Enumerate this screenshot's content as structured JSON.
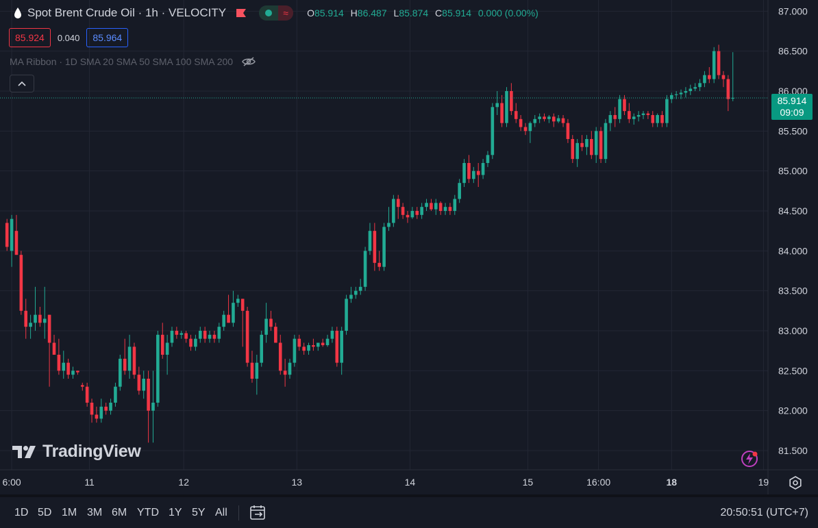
{
  "header": {
    "title": "Spot Brent Crude Oil · 1h · VELOCITY",
    "ohlc": [
      {
        "key": "O",
        "value": "85.914"
      },
      {
        "key": "H",
        "value": "86.487"
      },
      {
        "key": "L",
        "value": "85.874"
      },
      {
        "key": "C",
        "value": "85.914"
      }
    ],
    "change": "0.000 (0.00%)",
    "bid": "85.924",
    "spread": "0.040",
    "ask": "85.964",
    "indicator": "MA Ribbon · 1D SMA 20 SMA 50 SMA 100 SMA 200"
  },
  "logo_text": "TradingView",
  "last_price_label": {
    "price": "85.914",
    "countdown": "09:09"
  },
  "toolbar": {
    "timeframes": [
      "1D",
      "5D",
      "1M",
      "3M",
      "6M",
      "YTD",
      "1Y",
      "5Y",
      "All"
    ],
    "clock": "20:50:51 (UTC+7)"
  },
  "colors": {
    "background": "#161a25",
    "up": "#22ab94",
    "down": "#f23645",
    "grid": "#232734",
    "text": "#d1d4dc",
    "last_price_bg": "#089981"
  },
  "icons": [
    "oil-drop-icon",
    "flag-icon",
    "status-dot-icon",
    "wave-icon",
    "eye-hidden-icon",
    "chevron-up-icon",
    "tradingview-logo-icon",
    "lightning-icon",
    "gear-icon",
    "calendar-range-icon"
  ],
  "chart_data": {
    "type": "candlestick",
    "y_ticks": [
      "87.000",
      "86.500",
      "86.000",
      "85.500",
      "85.000",
      "84.500",
      "84.000",
      "83.500",
      "83.000",
      "82.500",
      "82.000",
      "81.500"
    ],
    "ylim": [
      81.26,
      87.14
    ],
    "x_ticks": [
      {
        "label": "6:00",
        "pos": 1
      },
      {
        "label": "11",
        "pos": 17.5
      },
      {
        "label": "12",
        "pos": 37.5
      },
      {
        "label": "13",
        "pos": 61.5
      },
      {
        "label": "14",
        "pos": 85.5
      },
      {
        "label": "15",
        "pos": 110.5
      },
      {
        "label": "16:00",
        "pos": 125.5
      },
      {
        "label": "18",
        "pos": 141
      },
      {
        "label": "19",
        "pos": 160.5
      }
    ],
    "last_price": 85.914,
    "candles": [
      [
        84.35,
        84.4,
        84.0,
        84.05
      ],
      [
        84.0,
        84.45,
        83.8,
        84.4
      ],
      [
        84.25,
        84.45,
        83.95,
        83.95
      ],
      [
        83.95,
        84.0,
        83.2,
        83.25
      ],
      [
        83.25,
        83.4,
        82.9,
        83.05
      ],
      [
        83.05,
        83.2,
        82.9,
        83.1
      ],
      [
        83.1,
        83.55,
        83.0,
        83.2
      ],
      [
        83.2,
        83.3,
        83.05,
        83.1
      ],
      [
        83.1,
        83.55,
        82.9,
        83.15
      ],
      [
        83.2,
        83.2,
        82.3,
        82.85
      ],
      [
        82.85,
        82.95,
        82.7,
        82.7
      ],
      [
        82.7,
        82.9,
        82.45,
        82.5
      ],
      [
        82.5,
        82.75,
        82.4,
        82.6
      ],
      [
        82.6,
        82.65,
        82.4,
        82.45
      ],
      [
        82.45,
        82.55,
        82.4,
        82.5
      ],
      [
        82.5,
        82.5,
        82.45,
        82.48
      ],
      [
        82.32,
        82.35,
        82.25,
        82.3
      ],
      [
        82.3,
        82.35,
        82.05,
        82.1
      ],
      [
        82.1,
        82.15,
        81.85,
        81.95
      ],
      [
        81.95,
        82.05,
        81.85,
        81.9
      ],
      [
        81.9,
        82.15,
        81.85,
        82.05
      ],
      [
        82.05,
        82.1,
        81.95,
        82.0
      ],
      [
        82.0,
        82.15,
        81.95,
        82.1
      ],
      [
        82.1,
        82.35,
        82.05,
        82.3
      ],
      [
        82.3,
        82.7,
        82.25,
        82.65
      ],
      [
        82.65,
        82.9,
        82.45,
        82.5
      ],
      [
        82.5,
        82.95,
        82.4,
        82.8
      ],
      [
        82.8,
        82.85,
        82.4,
        82.45
      ],
      [
        82.45,
        82.55,
        82.2,
        82.25
      ],
      [
        82.25,
        82.5,
        82.15,
        82.4
      ],
      [
        82.4,
        82.5,
        81.6,
        82.0
      ],
      [
        82.0,
        82.5,
        81.6,
        82.1
      ],
      [
        82.1,
        83.0,
        82.05,
        82.95
      ],
      [
        82.95,
        83.1,
        82.65,
        82.7
      ],
      [
        82.7,
        82.95,
        82.45,
        82.85
      ],
      [
        82.85,
        83.05,
        82.8,
        83.0
      ],
      [
        83.0,
        83.05,
        82.9,
        82.95
      ],
      [
        82.95,
        83.0,
        82.9,
        82.97
      ],
      [
        82.97,
        83.0,
        82.85,
        82.9
      ],
      [
        82.9,
        82.95,
        82.75,
        82.8
      ],
      [
        82.8,
        82.95,
        82.75,
        82.9
      ],
      [
        82.9,
        83.05,
        82.85,
        83.0
      ],
      [
        83.0,
        83.05,
        82.85,
        82.9
      ],
      [
        82.9,
        83.0,
        82.85,
        82.95
      ],
      [
        82.95,
        83.0,
        82.85,
        82.9
      ],
      [
        82.9,
        83.1,
        82.85,
        83.05
      ],
      [
        83.05,
        83.25,
        83.0,
        83.2
      ],
      [
        83.2,
        83.45,
        83.1,
        83.1
      ],
      [
        83.1,
        83.5,
        83.05,
        83.35
      ],
      [
        83.35,
        83.45,
        83.3,
        83.4
      ],
      [
        83.4,
        83.4,
        82.8,
        83.25
      ],
      [
        83.25,
        83.3,
        82.55,
        82.6
      ],
      [
        82.6,
        82.75,
        82.35,
        82.4
      ],
      [
        82.4,
        82.7,
        82.2,
        82.6
      ],
      [
        82.6,
        83.0,
        82.55,
        82.95
      ],
      [
        82.95,
        83.35,
        82.85,
        83.15
      ],
      [
        83.15,
        83.25,
        83.0,
        83.05
      ],
      [
        83.05,
        83.1,
        82.85,
        82.85
      ],
      [
        82.85,
        82.95,
        82.45,
        82.5
      ],
      [
        82.5,
        82.65,
        82.3,
        82.45
      ],
      [
        82.45,
        82.65,
        82.4,
        82.6
      ],
      [
        82.6,
        82.95,
        82.55,
        82.9
      ],
      [
        82.9,
        82.95,
        82.75,
        82.8
      ],
      [
        82.8,
        82.85,
        82.7,
        82.75
      ],
      [
        82.75,
        82.85,
        82.7,
        82.82
      ],
      [
        82.82,
        82.9,
        82.75,
        82.8
      ],
      [
        82.8,
        82.85,
        82.75,
        82.85
      ],
      [
        82.85,
        82.9,
        82.8,
        82.82
      ],
      [
        82.82,
        82.95,
        82.8,
        82.9
      ],
      [
        82.9,
        83.05,
        82.85,
        83.0
      ],
      [
        83.0,
        83.05,
        82.55,
        82.6
      ],
      [
        82.6,
        83.05,
        82.45,
        83.0
      ],
      [
        83.0,
        83.45,
        82.95,
        83.4
      ],
      [
        83.4,
        83.55,
        83.35,
        83.45
      ],
      [
        83.45,
        83.55,
        83.4,
        83.5
      ],
      [
        83.5,
        83.65,
        83.45,
        83.55
      ],
      [
        83.55,
        84.05,
        83.5,
        84.0
      ],
      [
        84.0,
        84.35,
        83.95,
        84.25
      ],
      [
        84.25,
        84.35,
        83.75,
        83.85
      ],
      [
        83.85,
        84.0,
        83.75,
        83.8
      ],
      [
        83.8,
        84.35,
        83.75,
        84.3
      ],
      [
        84.3,
        84.55,
        84.25,
        84.35
      ],
      [
        84.35,
        84.7,
        84.3,
        84.65
      ],
      [
        84.65,
        84.7,
        84.4,
        84.55
      ],
      [
        84.55,
        84.6,
        84.4,
        84.45
      ],
      [
        84.45,
        84.5,
        84.35,
        84.42
      ],
      [
        84.42,
        84.55,
        84.4,
        84.5
      ],
      [
        84.5,
        84.55,
        84.4,
        84.45
      ],
      [
        84.45,
        84.6,
        84.4,
        84.55
      ],
      [
        84.55,
        84.65,
        84.5,
        84.6
      ],
      [
        84.6,
        84.65,
        84.5,
        84.52
      ],
      [
        84.52,
        84.65,
        84.45,
        84.6
      ],
      [
        84.6,
        84.62,
        84.45,
        84.5
      ],
      [
        84.5,
        84.6,
        84.45,
        84.55
      ],
      [
        84.55,
        84.6,
        84.45,
        84.5
      ],
      [
        84.5,
        84.7,
        84.45,
        84.65
      ],
      [
        84.65,
        84.9,
        84.6,
        84.85
      ],
      [
        84.85,
        85.15,
        84.8,
        85.1
      ],
      [
        85.1,
        85.2,
        84.85,
        84.9
      ],
      [
        84.9,
        85.05,
        84.85,
        85.0
      ],
      [
        85.0,
        85.1,
        84.8,
        84.95
      ],
      [
        84.95,
        85.15,
        84.9,
        85.1
      ],
      [
        85.1,
        85.25,
        85.05,
        85.2
      ],
      [
        85.2,
        85.85,
        85.15,
        85.8
      ],
      [
        85.8,
        86.0,
        85.7,
        85.85
      ],
      [
        85.85,
        85.95,
        85.55,
        85.6
      ],
      [
        85.6,
        86.05,
        85.55,
        86.0
      ],
      [
        86.0,
        86.1,
        85.7,
        85.75
      ],
      [
        85.75,
        85.85,
        85.6,
        85.65
      ],
      [
        85.65,
        85.7,
        85.5,
        85.55
      ],
      [
        85.55,
        85.6,
        85.45,
        85.5
      ],
      [
        85.5,
        85.62,
        85.35,
        85.6
      ],
      [
        85.6,
        85.7,
        85.55,
        85.65
      ],
      [
        85.65,
        85.72,
        85.6,
        85.68
      ],
      [
        85.68,
        85.72,
        85.62,
        85.65
      ],
      [
        85.65,
        85.7,
        85.6,
        85.68
      ],
      [
        85.68,
        85.72,
        85.55,
        85.62
      ],
      [
        85.62,
        85.7,
        85.6,
        85.66
      ],
      [
        85.66,
        85.7,
        85.55,
        85.6
      ],
      [
        85.6,
        85.65,
        85.35,
        85.4
      ],
      [
        85.4,
        85.45,
        85.1,
        85.15
      ],
      [
        85.15,
        85.4,
        85.05,
        85.35
      ],
      [
        85.35,
        85.45,
        85.25,
        85.3
      ],
      [
        85.3,
        85.45,
        85.2,
        85.4
      ],
      [
        85.4,
        85.5,
        85.15,
        85.2
      ],
      [
        85.2,
        85.55,
        85.1,
        85.5
      ],
      [
        85.5,
        85.55,
        85.1,
        85.15
      ],
      [
        85.15,
        85.65,
        85.1,
        85.6
      ],
      [
        85.6,
        85.75,
        85.5,
        85.7
      ],
      [
        85.7,
        85.8,
        85.55,
        85.65
      ],
      [
        85.65,
        85.95,
        85.6,
        85.9
      ],
      [
        85.9,
        85.95,
        85.7,
        85.75
      ],
      [
        85.75,
        85.85,
        85.6,
        85.65
      ],
      [
        85.65,
        85.72,
        85.58,
        85.68
      ],
      [
        85.68,
        85.75,
        85.62,
        85.7
      ],
      [
        85.7,
        85.75,
        85.65,
        85.72
      ],
      [
        85.72,
        85.75,
        85.65,
        85.7
      ],
      [
        85.7,
        85.75,
        85.55,
        85.6
      ],
      [
        85.6,
        85.72,
        85.55,
        85.7
      ],
      [
        85.7,
        85.75,
        85.55,
        85.6
      ],
      [
        85.6,
        85.95,
        85.55,
        85.9
      ],
      [
        85.9,
        85.98,
        85.85,
        85.95
      ],
      [
        85.95,
        86.0,
        85.9,
        85.96
      ],
      [
        85.96,
        86.02,
        85.9,
        85.98
      ],
      [
        85.98,
        86.05,
        85.92,
        86.0
      ],
      [
        86.0,
        86.08,
        85.95,
        86.03
      ],
      [
        86.03,
        86.1,
        86.0,
        86.05
      ],
      [
        86.05,
        86.15,
        86.0,
        86.1
      ],
      [
        86.1,
        86.25,
        86.05,
        86.2
      ],
      [
        86.2,
        86.3,
        86.1,
        86.15
      ],
      [
        86.15,
        86.55,
        86.1,
        86.5
      ],
      [
        86.5,
        86.58,
        86.15,
        86.2
      ],
      [
        86.2,
        86.25,
        86.05,
        86.15
      ],
      [
        86.15,
        86.2,
        85.75,
        85.9
      ],
      [
        85.914,
        86.487,
        85.874,
        85.914
      ]
    ]
  }
}
